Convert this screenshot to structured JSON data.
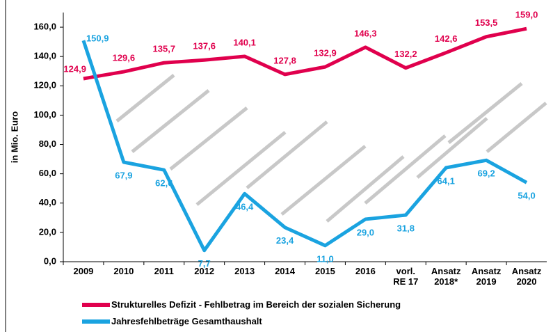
{
  "chart_data": {
    "type": "line",
    "y_label": "in Mio. Euro",
    "categories": [
      "2009",
      "2010",
      "2011",
      "2012",
      "2013",
      "2014",
      "2015",
      "2016",
      "vorl.\nRE 17",
      "Ansatz\n2018*",
      "Ansatz\n2019",
      "Ansatz\n2020"
    ],
    "series": [
      {
        "name": "Strukturelles Defizit - Fehlbetrag im Bereich der sozialen Sicherung",
        "color": "#e0004d",
        "values": [
          124.9,
          129.6,
          135.7,
          137.6,
          140.1,
          127.8,
          132.9,
          146.3,
          132.2,
          142.6,
          153.5,
          159.0
        ],
        "value_labels": [
          "124,9",
          "129,6",
          "135,7",
          "137,6",
          "140,1",
          "127,8",
          "132,9",
          "146,3",
          "132,2",
          "142,6",
          "153,5",
          "159,0"
        ]
      },
      {
        "name": "Jahresfehlbeträge Gesamthaushalt",
        "color": "#1aa3e0",
        "values": [
          150.9,
          67.9,
          62.6,
          7.7,
          46.4,
          23.4,
          11.0,
          29.0,
          31.8,
          64.1,
          69.2,
          54.0
        ],
        "value_labels": [
          "150,9",
          "67,9",
          "62,6",
          "7,7",
          "46,4",
          "23,4",
          "11,0",
          "29,0",
          "31,8",
          "64,1",
          "69,2",
          "54,0"
        ]
      }
    ],
    "ylim": [
      0,
      170
    ],
    "yticks": [
      {
        "value": 0,
        "label": "0,0"
      },
      {
        "value": 20,
        "label": "20,0"
      },
      {
        "value": 40,
        "label": "40,0"
      },
      {
        "value": 60,
        "label": "60,0"
      },
      {
        "value": 80,
        "label": "80,0"
      },
      {
        "value": 100,
        "label": "100,0"
      },
      {
        "value": 120,
        "label": "120,0"
      },
      {
        "value": 140,
        "label": "140,0"
      },
      {
        "value": 160,
        "label": "160,0"
      }
    ],
    "legend": "bottom"
  }
}
